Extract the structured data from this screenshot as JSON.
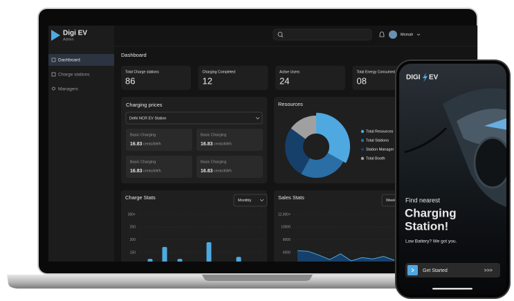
{
  "laptop": {
    "brand": "Digi EV",
    "role": "Admin",
    "nav": [
      "Dashboard",
      "Charge stations",
      "Managers"
    ],
    "user": "Momah",
    "page_title": "Dashboard",
    "stats": [
      {
        "label": "Total Charge stations",
        "value": "86"
      },
      {
        "label": "Charging Completed",
        "value": "12"
      },
      {
        "label": "Active Users",
        "value": "24"
      },
      {
        "label": "Total Energy Consumed",
        "value": "08"
      }
    ],
    "charging_prices": {
      "title": "Charging prices",
      "station": "Delhi NCR EV Station",
      "items": [
        {
          "name": "Basic Charging",
          "price": "16.83",
          "unit": "cents/kWh"
        },
        {
          "name": "Basic Charging",
          "price": "16.83",
          "unit": "cents/kWh"
        },
        {
          "name": "Basic Charging",
          "price": "16.83",
          "unit": "cents/kWh"
        },
        {
          "name": "Basic Charging",
          "price": "16.83",
          "unit": "cents/kWh"
        }
      ]
    }
  },
  "chart_data": [
    {
      "type": "pie",
      "title": "Resources",
      "categories": [
        "Total Resources",
        "Total Stations",
        "Station Manager",
        "Total Booth"
      ],
      "values": [
        33,
        25,
        27,
        15
      ],
      "colors": [
        "#4fa8e0",
        "#2a6ea5",
        "#16406a",
        "#a0a0a0"
      ]
    },
    {
      "type": "bar",
      "title": "Charge Stats",
      "period": "Monthly",
      "values": [
        125,
        172,
        125,
        191,
        133
      ],
      "color": "#4fa8e0",
      "ylim": [
        0,
        300
      ],
      "yticks": [
        {
          "value": 300,
          "label": "300+"
        },
        250,
        200,
        150
      ]
    },
    {
      "type": "area",
      "title": "Sales Stats",
      "period": "Weekly",
      "values": [
        6300,
        6200,
        5600,
        4900,
        5800,
        4700,
        5200,
        5000,
        5400,
        4800
      ],
      "color": "#4fa8e0",
      "fill": "#16406a",
      "ylim": [
        0,
        12000
      ],
      "yticks": [
        {
          "value": 12000,
          "label": "12,000+"
        },
        10000,
        8000,
        6000
      ]
    }
  ],
  "phone": {
    "logo_left": "DIGI",
    "logo_right": "EV",
    "kicker": "Find nearest",
    "headline": [
      "Charging",
      "Station!"
    ],
    "subtitle": "Low Battery? We got you.",
    "button": "Get Started",
    "button_arrows": ">>>"
  }
}
